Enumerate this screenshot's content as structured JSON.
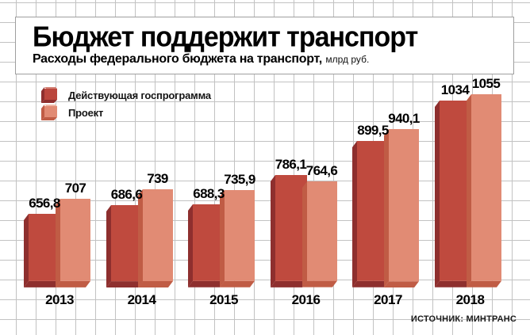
{
  "header": {
    "title": "Бюджет поддержит транспорт",
    "subtitle": "Расходы федерального бюджета на транспорт,",
    "subtitle_unit": "млрд руб."
  },
  "legend": {
    "items": [
      {
        "label": "Действующая госпрограмма",
        "face": "#bb463d",
        "shade": "#8e2f2e",
        "highlight": "#d27f72"
      },
      {
        "label": "Проект",
        "face": "#e18b74",
        "shade": "#c05c45",
        "highlight": "#efb9a8"
      }
    ]
  },
  "source": "ИСТОЧНИК: МИНТРАНС",
  "chart_data": {
    "type": "bar",
    "title": "Бюджет поддержит транспорт",
    "subtitle": "Расходы федерального бюджета на транспорт, млрд руб.",
    "xlabel": "",
    "ylabel": "млрд руб.",
    "categories": [
      "2013",
      "2014",
      "2015",
      "2016",
      "2017",
      "2018"
    ],
    "series": [
      {
        "name": "Действующая госпрограмма",
        "values": [
          656.8,
          686.6,
          688.3,
          786.1,
          899.5,
          1034
        ],
        "labels": [
          "656,8",
          "686,6",
          "688,3",
          "786,1",
          "899,5",
          "1034"
        ],
        "face_color": "#bf4a3e",
        "shade_color": "#8e2f2e"
      },
      {
        "name": "Проект",
        "values": [
          707,
          739,
          735.9,
          764.6,
          940.1,
          1055
        ],
        "labels": [
          "707",
          "739",
          "735,9",
          "764,6",
          "940,1",
          "1055"
        ],
        "face_color": "#e18b74",
        "shade_color": "#c05c45"
      }
    ],
    "axis_truncated": true,
    "baseline_value": 433,
    "grid": true,
    "legend_position": "top-left",
    "source": "ИСТОЧНИК: МИНТРАНС"
  }
}
